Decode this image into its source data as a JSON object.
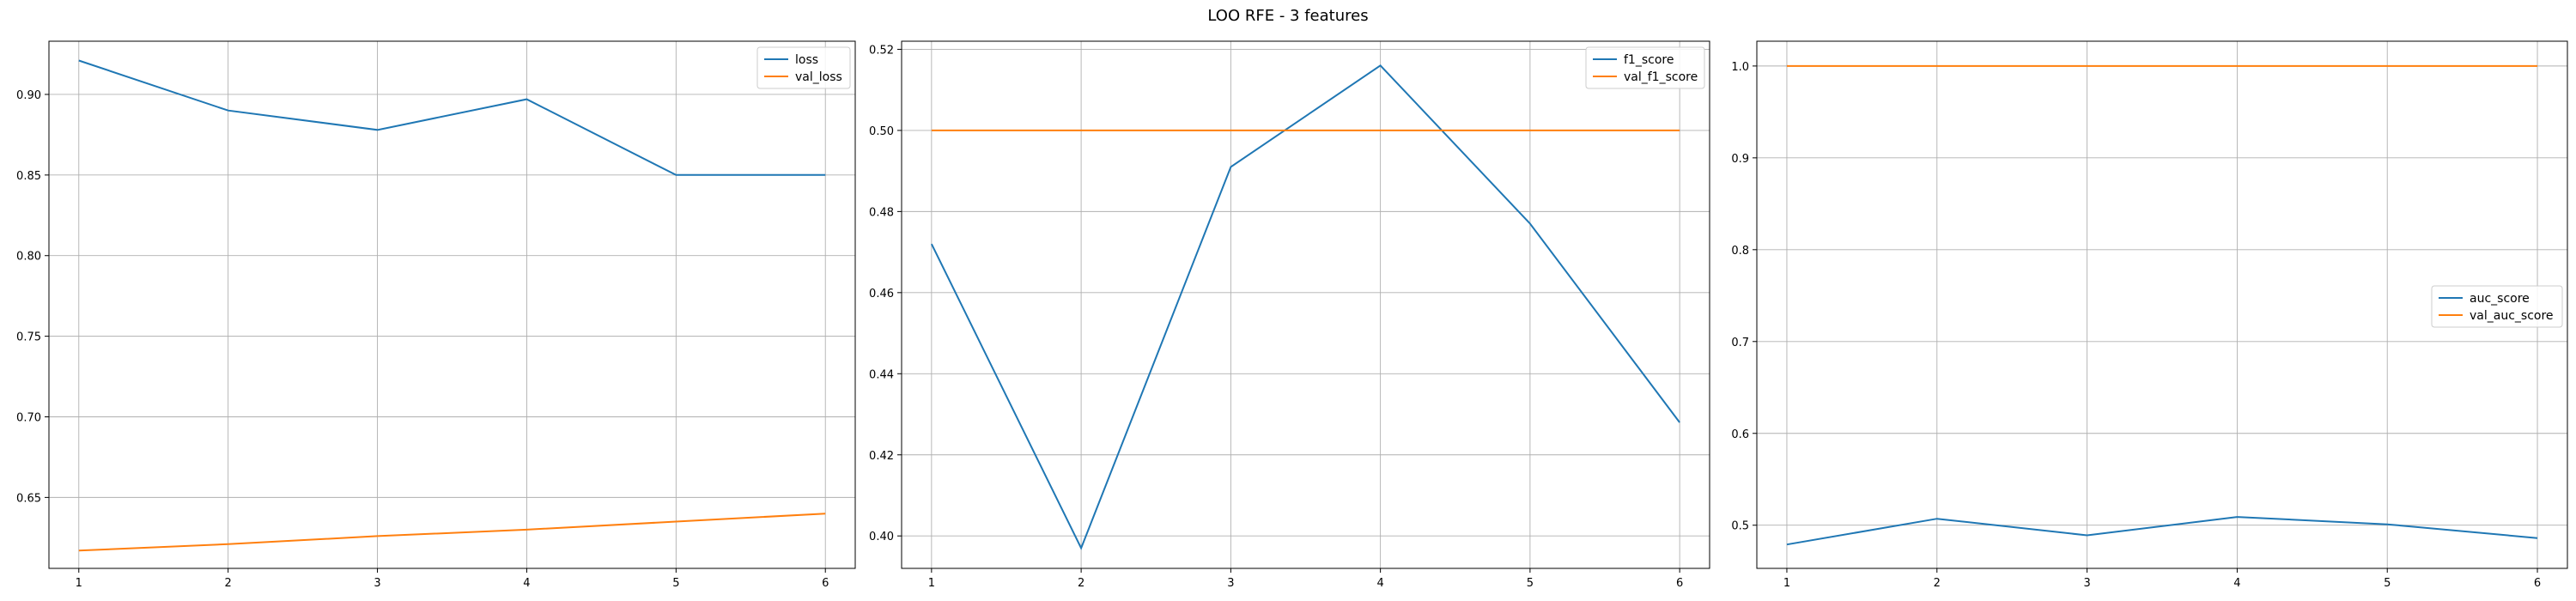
{
  "figure": {
    "title": "LOO RFE - 3 features"
  },
  "chart_data": [
    {
      "type": "line",
      "x": [
        1,
        2,
        3,
        4,
        5,
        6
      ],
      "xticks": [
        1,
        2,
        3,
        4,
        5,
        6
      ],
      "yticks": [
        0.65,
        0.7,
        0.75,
        0.8,
        0.85,
        0.9
      ],
      "ytick_decimals": 2,
      "xlim": [
        0.8,
        6.2
      ],
      "ylim": [
        0.606,
        0.933
      ],
      "grid": true,
      "legend_position": "upper right",
      "series": [
        {
          "name": "loss",
          "color": "#1f77b4",
          "values": [
            0.921,
            0.89,
            0.878,
            0.897,
            0.85,
            0.85
          ]
        },
        {
          "name": "val_loss",
          "color": "#ff7f0e",
          "values": [
            0.617,
            0.621,
            0.626,
            0.63,
            0.635,
            0.64
          ]
        }
      ]
    },
    {
      "type": "line",
      "x": [
        1,
        2,
        3,
        4,
        5,
        6
      ],
      "xticks": [
        1,
        2,
        3,
        4,
        5,
        6
      ],
      "yticks": [
        0.4,
        0.42,
        0.44,
        0.46,
        0.48,
        0.5,
        0.52
      ],
      "ytick_decimals": 2,
      "xlim": [
        0.8,
        6.2
      ],
      "ylim": [
        0.392,
        0.522
      ],
      "grid": true,
      "legend_position": "upper right",
      "series": [
        {
          "name": "f1_score",
          "color": "#1f77b4",
          "values": [
            0.472,
            0.397,
            0.491,
            0.516,
            0.477,
            0.428
          ]
        },
        {
          "name": "val_f1_score",
          "color": "#ff7f0e",
          "values": [
            0.5,
            0.5,
            0.5,
            0.5,
            0.5,
            0.5
          ]
        }
      ]
    },
    {
      "type": "line",
      "x": [
        1,
        2,
        3,
        4,
        5,
        6
      ],
      "xticks": [
        1,
        2,
        3,
        4,
        5,
        6
      ],
      "yticks": [
        0.5,
        0.6,
        0.7,
        0.8,
        0.9,
        1.0
      ],
      "ytick_decimals": 1,
      "xlim": [
        0.8,
        6.2
      ],
      "ylim": [
        0.453,
        1.027
      ],
      "grid": true,
      "legend_position": "center right",
      "series": [
        {
          "name": "auc_score",
          "color": "#1f77b4",
          "values": [
            0.479,
            0.507,
            0.489,
            0.509,
            0.501,
            0.486
          ]
        },
        {
          "name": "val_auc_score",
          "color": "#ff7f0e",
          "values": [
            1.0,
            1.0,
            1.0,
            1.0,
            1.0,
            1.0
          ]
        }
      ]
    }
  ]
}
